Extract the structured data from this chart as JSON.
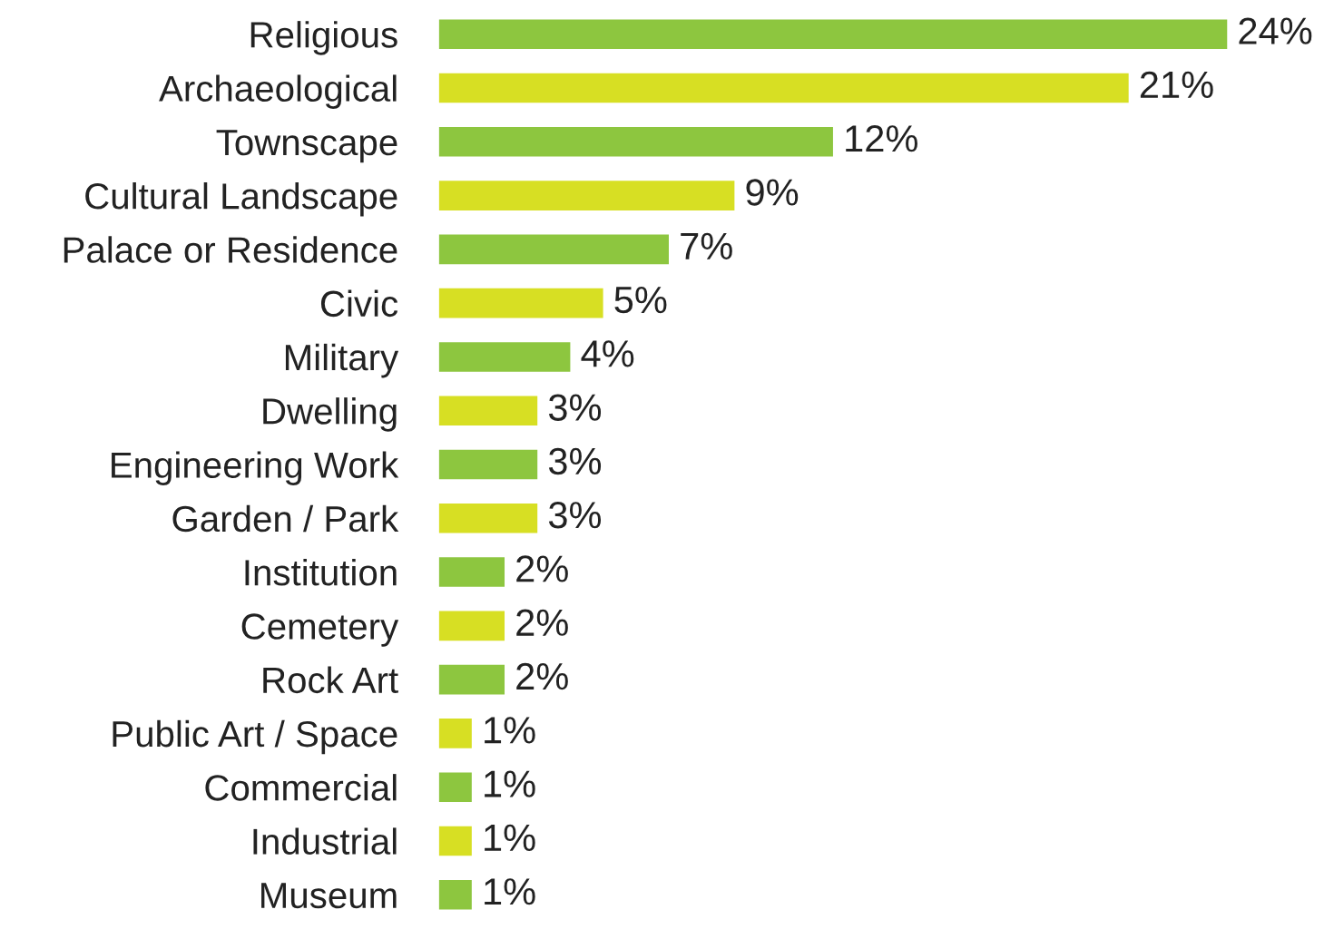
{
  "chart_data": {
    "type": "bar",
    "orientation": "horizontal",
    "categories": [
      "Religious",
      "Archaeological",
      "Townscape",
      "Cultural Landscape",
      "Palace or Residence",
      "Civic",
      "Military",
      "Dwelling",
      "Engineering Work",
      "Garden / Park",
      "Institution",
      "Cemetery",
      "Rock Art",
      "Public Art / Space",
      "Commercial",
      "Industrial",
      "Museum"
    ],
    "values": [
      24,
      21,
      12,
      9,
      7,
      5,
      4,
      3,
      3,
      3,
      2,
      2,
      2,
      1,
      1,
      1,
      1
    ],
    "value_labels": [
      "24%",
      "21%",
      "12%",
      "9%",
      "7%",
      "5%",
      "4%",
      "3%",
      "3%",
      "3%",
      "2%",
      "2%",
      "2%",
      "1%",
      "1%",
      "1%",
      "1%"
    ],
    "colors": [
      "#8dc63f",
      "#d7df23",
      "#8dc63f",
      "#d7df23",
      "#8dc63f",
      "#d7df23",
      "#8dc63f",
      "#d7df23",
      "#8dc63f",
      "#d7df23",
      "#8dc63f",
      "#d7df23",
      "#8dc63f",
      "#d7df23",
      "#8dc63f",
      "#d7df23",
      "#8dc63f"
    ]
  }
}
